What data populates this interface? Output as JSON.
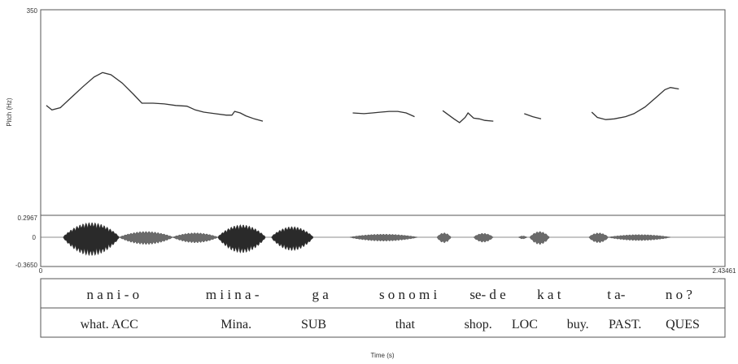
{
  "chart_data": [
    {
      "type": "line",
      "panel": "pitch",
      "ylabel": "Pitch (Hz)",
      "y_top_label": "350",
      "ylim": [
        75,
        350
      ],
      "xlim": [
        0,
        2.434
      ],
      "grid": false,
      "series": [
        {
          "points": [
            [
              0.02,
              222
            ],
            [
              0.04,
              216
            ],
            [
              0.07,
              219
            ],
            [
              0.11,
              233
            ],
            [
              0.15,
              247
            ],
            [
              0.19,
              260
            ],
            [
              0.22,
              266
            ],
            [
              0.25,
              263
            ],
            [
              0.29,
              252
            ],
            [
              0.33,
              237
            ],
            [
              0.36,
              225
            ],
            [
              0.4,
              225
            ],
            [
              0.44,
              224
            ],
            [
              0.48,
              222
            ],
            [
              0.52,
              221
            ],
            [
              0.55,
              216
            ],
            [
              0.58,
              213
            ],
            [
              0.62,
              211
            ],
            [
              0.66,
              209
            ],
            [
              0.68,
              209
            ],
            [
              0.69,
              214
            ],
            [
              0.71,
              212
            ],
            [
              0.73,
              208
            ],
            [
              0.76,
              204
            ],
            [
              0.79,
              201
            ]
          ]
        },
        {
          "points": [
            [
              1.11,
              212
            ],
            [
              1.15,
              211
            ],
            [
              1.18,
              212
            ],
            [
              1.21,
              213
            ],
            [
              1.24,
              214
            ],
            [
              1.27,
              214
            ],
            [
              1.3,
              212
            ],
            [
              1.33,
              207
            ]
          ]
        },
        {
          "points": [
            [
              1.43,
              215
            ],
            [
              1.47,
              204
            ],
            [
              1.49,
              199
            ],
            [
              1.51,
              206
            ],
            [
              1.52,
              212
            ],
            [
              1.54,
              205
            ],
            [
              1.56,
              204
            ],
            [
              1.58,
              202
            ],
            [
              1.61,
              201
            ]
          ]
        },
        {
          "points": [
            [
              1.72,
              211
            ],
            [
              1.75,
              207
            ],
            [
              1.78,
              204
            ]
          ]
        },
        {
          "points": [
            [
              1.96,
              213
            ],
            [
              1.98,
              206
            ],
            [
              2.01,
              203
            ],
            [
              2.04,
              204
            ],
            [
              2.08,
              207
            ],
            [
              2.11,
              211
            ],
            [
              2.15,
              220
            ],
            [
              2.19,
              233
            ],
            [
              2.22,
              243
            ],
            [
              2.24,
              246
            ],
            [
              2.27,
              244
            ]
          ]
        }
      ]
    },
    {
      "type": "area",
      "panel": "waveform",
      "y_top_label": "0.2967",
      "y_zero_label": "0",
      "y_bottom_label": "-0.3650",
      "ylim": [
        -0.365,
        0.2967
      ],
      "x_start_label": "0",
      "x_end_label": "2.43461",
      "xlim": [
        0,
        2.43461
      ],
      "segments": [
        {
          "t0": 0.08,
          "t1": 0.28,
          "amp": 0.33
        },
        {
          "t0": 0.28,
          "t1": 0.47,
          "amp": 0.13
        },
        {
          "t0": 0.47,
          "t1": 0.63,
          "amp": 0.1
        },
        {
          "t0": 0.63,
          "t1": 0.8,
          "amp": 0.28
        },
        {
          "t0": 0.82,
          "t1": 0.97,
          "amp": 0.24
        },
        {
          "t0": 1.1,
          "t1": 1.34,
          "amp": 0.07
        },
        {
          "t0": 1.41,
          "t1": 1.46,
          "amp": 0.1
        },
        {
          "t0": 1.54,
          "t1": 1.61,
          "amp": 0.09
        },
        {
          "t0": 1.7,
          "t1": 1.73,
          "amp": 0.03
        },
        {
          "t0": 1.74,
          "t1": 1.81,
          "amp": 0.13
        },
        {
          "t0": 1.95,
          "t1": 2.02,
          "amp": 0.1
        },
        {
          "t0": 2.02,
          "t1": 2.24,
          "amp": 0.06
        }
      ]
    },
    {
      "type": "table",
      "panel": "annotation",
      "tiers": [
        {
          "labels": [
            {
              "text": "n a n i - o",
              "x": 0.153
            },
            {
              "text": "m i i n a -",
              "x": 0.315
            },
            {
              "text": "g a",
              "x": 0.434
            },
            {
              "text": "s o n o m i",
              "x": 0.553
            },
            {
              "text": "se- d e",
              "x": 0.661
            },
            {
              "text": "k a t",
              "x": 0.744
            },
            {
              "text": "t a-",
              "x": 0.835
            },
            {
              "text": "n o ?",
              "x": 0.92
            }
          ]
        },
        {
          "labels": [
            {
              "text": "what. ACC",
              "x": 0.148
            },
            {
              "text": "Mina.",
              "x": 0.32
            },
            {
              "text": "SUB",
              "x": 0.425
            },
            {
              "text": "that",
              "x": 0.549
            },
            {
              "text": "shop.",
              "x": 0.648
            },
            {
              "text": "LOC",
              "x": 0.711
            },
            {
              "text": "buy.",
              "x": 0.783
            },
            {
              "text": "PAST.",
              "x": 0.847
            },
            {
              "text": "QUES",
              "x": 0.925
            }
          ]
        }
      ],
      "xlabel": "Time (s)"
    }
  ]
}
